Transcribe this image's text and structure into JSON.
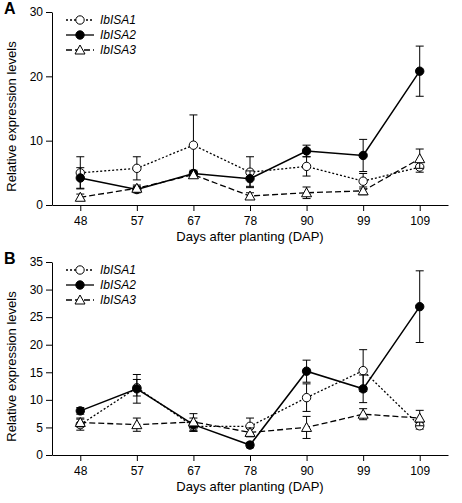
{
  "chart_data": [
    {
      "type": "line",
      "title": "A",
      "x_label": "Days after planting (DAP)",
      "y_label": "Relative expression levels",
      "categories": [
        "48",
        "57",
        "67",
        "78",
        "90",
        "99",
        "109"
      ],
      "ylim": [
        0,
        30
      ],
      "yticks": [
        0,
        10,
        20,
        30
      ],
      "grid": false,
      "legend": "upper-left",
      "series": [
        {
          "name": "IbISA1",
          "color": "#000000",
          "marker": "circle-open",
          "line_style": "dotted",
          "values": [
            5.0,
            5.7,
            9.3,
            5.1,
            6.0,
            3.7,
            5.9
          ],
          "errors": [
            2.5,
            1.8,
            4.7,
            2.4,
            1.5,
            1.2,
            0.8
          ]
        },
        {
          "name": "IbISA2",
          "color": "#000000",
          "marker": "circle",
          "line_style": "solid",
          "values": [
            4.2,
            2.4,
            4.9,
            4.1,
            8.4,
            7.7,
            20.8
          ],
          "errors": [
            1.6,
            0.5,
            0.5,
            1.2,
            0.9,
            2.5,
            3.9
          ]
        },
        {
          "name": "IbISA3",
          "color": "#000000",
          "marker": "triangle-open",
          "line_style": "dashed",
          "values": [
            1.2,
            2.6,
            4.7,
            1.4,
            1.9,
            2.2,
            7.2
          ],
          "errors": [
            0.5,
            0.5,
            0.5,
            0.5,
            0.9,
            0.6,
            1.5
          ]
        }
      ]
    },
    {
      "type": "line",
      "title": "B",
      "x_label": "Days after planting (DAP)",
      "y_label": "Relative expression levels",
      "categories": [
        "48",
        "57",
        "67",
        "78",
        "90",
        "99",
        "109"
      ],
      "ylim": [
        0,
        35
      ],
      "yticks": [
        0,
        5,
        10,
        15,
        20,
        25,
        30,
        35
      ],
      "grid": false,
      "legend": "upper-left",
      "series": [
        {
          "name": "IbISA1",
          "color": "#000000",
          "marker": "circle-open",
          "line_style": "dotted",
          "values": [
            5.5,
            12.2,
            5.2,
            5.2,
            10.4,
            15.3,
            5.3
          ],
          "errors": [
            1.0,
            1.5,
            0.9,
            1.5,
            2.5,
            3.8,
            0.6
          ]
        },
        {
          "name": "IbISA2",
          "color": "#000000",
          "marker": "circle",
          "line_style": "solid",
          "values": [
            8.0,
            12.0,
            5.5,
            1.8,
            15.2,
            12.0,
            26.9
          ],
          "errors": [
            0.6,
            2.6,
            1.2,
            0.5,
            2.0,
            2.5,
            6.5
          ]
        },
        {
          "name": "IbISA3",
          "color": "#000000",
          "marker": "triangle-open",
          "line_style": "dashed",
          "values": [
            5.9,
            5.5,
            6.0,
            4.1,
            5.0,
            7.4,
            6.7
          ],
          "errors": [
            0.8,
            1.2,
            1.5,
            0.8,
            2.0,
            1.0,
            1.4
          ]
        }
      ]
    }
  ]
}
